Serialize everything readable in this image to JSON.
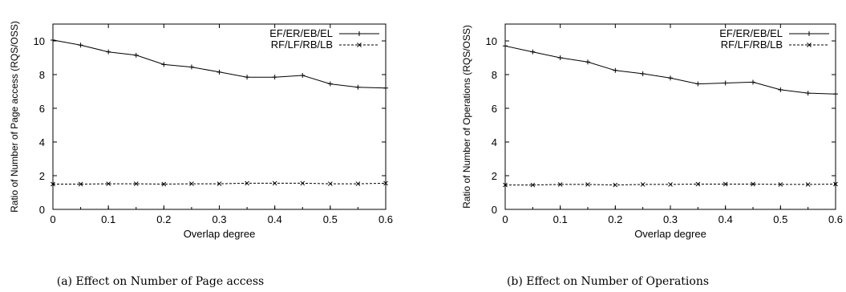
{
  "chart_data": [
    {
      "type": "line",
      "caption": "(a) Effect on Number of Page access",
      "xlabel": "Overlap degree",
      "ylabel": "Ratio of Number of Page access (RQS/OSS)",
      "xlim": [
        0,
        0.6
      ],
      "ylim": [
        0,
        11
      ],
      "xticks": [
        "0",
        "0.1",
        "0.2",
        "0.3",
        "0.4",
        "0.5",
        "0.6"
      ],
      "yticks": [
        "0",
        "2",
        "4",
        "6",
        "8",
        "10"
      ],
      "grid": false,
      "legend_position": "top-right",
      "x": [
        0,
        0.05,
        0.1,
        0.15,
        0.2,
        0.25,
        0.3,
        0.35,
        0.4,
        0.45,
        0.5,
        0.55,
        0.6
      ],
      "series": [
        {
          "name": "EF/ER/EB/EL",
          "marker": "plus",
          "style": "solid",
          "values": [
            10.05,
            9.75,
            9.35,
            9.15,
            8.6,
            8.45,
            8.15,
            7.85,
            7.85,
            7.95,
            7.45,
            7.25,
            7.2
          ]
        },
        {
          "name": "RF/LF/RB/LB",
          "marker": "cross",
          "style": "dashed",
          "values": [
            1.5,
            1.5,
            1.52,
            1.52,
            1.5,
            1.52,
            1.52,
            1.55,
            1.55,
            1.55,
            1.52,
            1.52,
            1.55
          ]
        }
      ]
    },
    {
      "type": "line",
      "caption": "(b) Effect on Number of Operations",
      "xlabel": "Overlap degree",
      "ylabel": "Ratio of Number of Operations (RQS/OSS)",
      "xlim": [
        0,
        0.6
      ],
      "ylim": [
        0,
        11
      ],
      "xticks": [
        "0",
        "0.1",
        "0.2",
        "0.3",
        "0.4",
        "0.5",
        "0.6"
      ],
      "yticks": [
        "0",
        "2",
        "4",
        "6",
        "8",
        "10"
      ],
      "grid": false,
      "legend_position": "top-right",
      "x": [
        0,
        0.05,
        0.1,
        0.15,
        0.2,
        0.25,
        0.3,
        0.35,
        0.4,
        0.45,
        0.5,
        0.55,
        0.6
      ],
      "series": [
        {
          "name": "EF/ER/EB/EL",
          "marker": "plus",
          "style": "solid",
          "values": [
            9.7,
            9.35,
            9.0,
            8.75,
            8.25,
            8.05,
            7.8,
            7.45,
            7.5,
            7.55,
            7.1,
            6.9,
            6.85
          ]
        },
        {
          "name": "RF/LF/RB/LB",
          "marker": "cross",
          "style": "dashed",
          "values": [
            1.45,
            1.45,
            1.48,
            1.48,
            1.45,
            1.48,
            1.48,
            1.5,
            1.5,
            1.5,
            1.48,
            1.48,
            1.5
          ]
        }
      ]
    }
  ]
}
